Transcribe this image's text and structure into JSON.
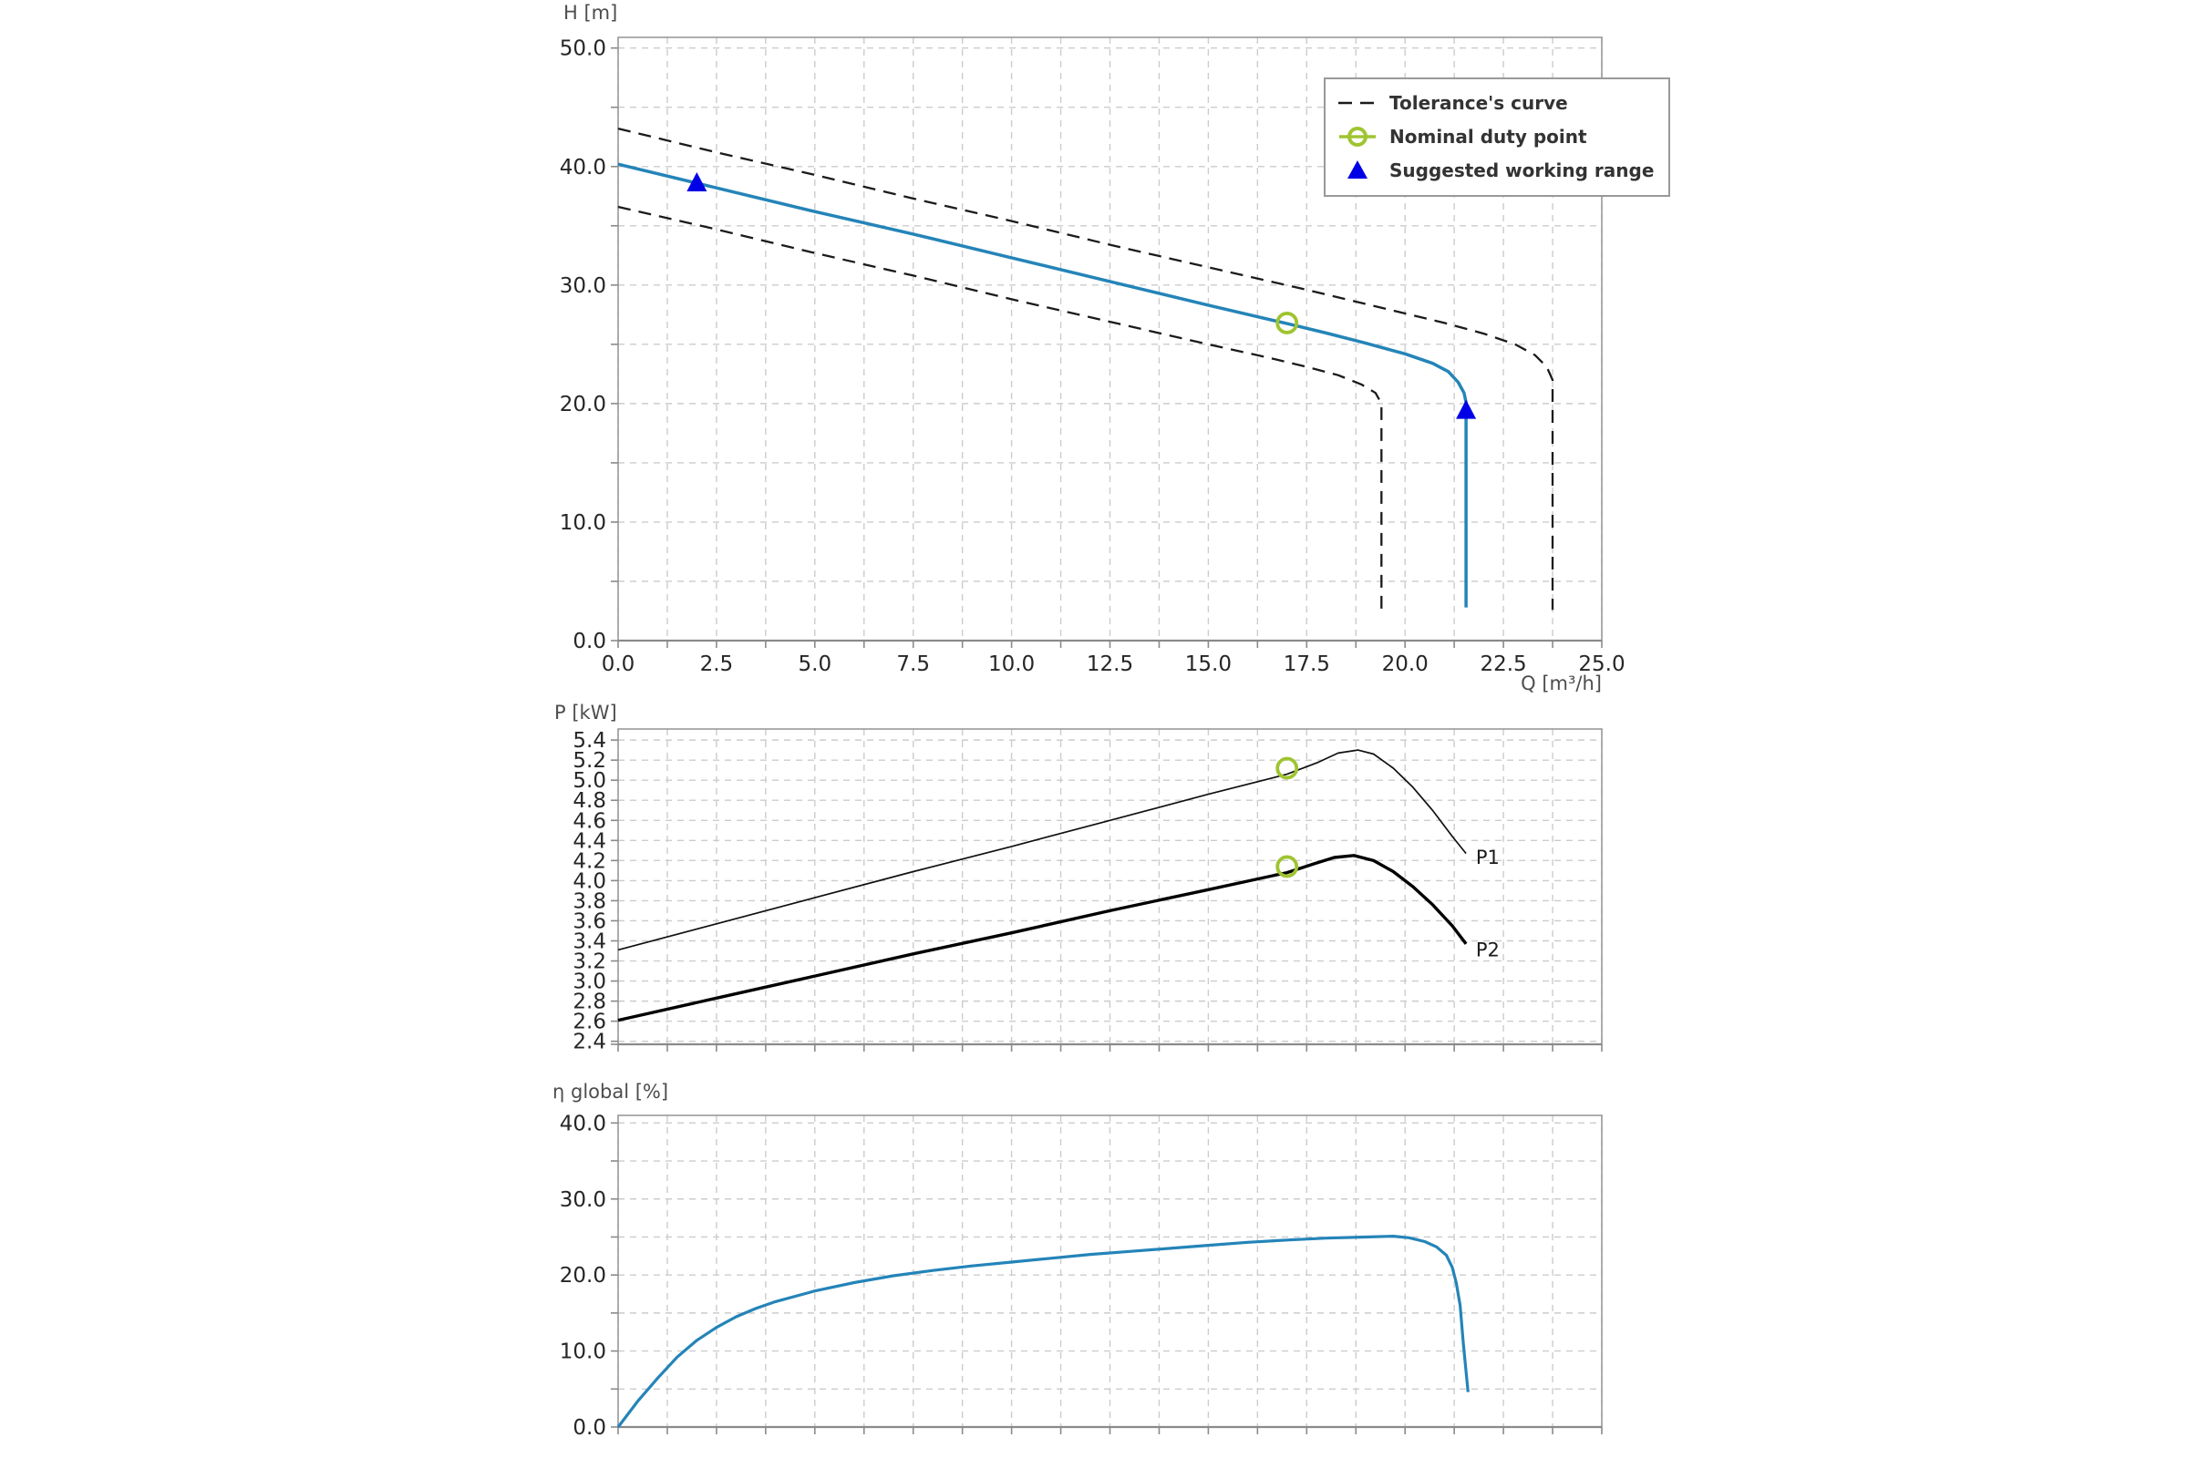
{
  "page": {
    "background": "#ffffff"
  },
  "colors": {
    "curve_blue": "#2484b8",
    "duty_point_green": "#9fc431",
    "working_range_blue": "#0000e6",
    "tolerance_dark": "#1b1b1b",
    "power_p1_black": "#101010",
    "power_p2_black": "#000000",
    "grid_gray": "#cccccc",
    "spine_gray": "#9a9a9a",
    "tick_text": "#262626",
    "title_text": "#4d4d4d",
    "legend_text": "#333333"
  },
  "chart_data": [
    {
      "type": "line",
      "title": "H [m]",
      "xlabel": "Q [m³/h]",
      "ylabel": "H [m]",
      "xlim": [
        0,
        25
      ],
      "ylim": [
        0,
        50.9
      ],
      "grid": {
        "on": true,
        "x_step": 1.25,
        "y_values": [
          5,
          10,
          15,
          20,
          25,
          30,
          35,
          40,
          45,
          50
        ]
      },
      "x_ticks": [
        0,
        2.5,
        5,
        7.5,
        10,
        12.5,
        15,
        17.5,
        20,
        22.5,
        25
      ],
      "x_tick_labels": [
        "0.0",
        "2.5",
        "5.0",
        "7.5",
        "10.0",
        "12.5",
        "15.0",
        "17.5",
        "20.0",
        "22.5",
        "25.0"
      ],
      "y_ticks": [
        0,
        10,
        20,
        30,
        40,
        50
      ],
      "y_tick_labels": [
        "0.0",
        "10.0",
        "20.0",
        "30.0",
        "40.0",
        "50.0"
      ],
      "legend": {
        "position": "upper right",
        "items": [
          {
            "label": "Tolerance's curve",
            "marker": "dashed-line",
            "color": "#1b1b1b"
          },
          {
            "label": "Nominal duty point",
            "marker": "open-circle",
            "color": "#9fc431"
          },
          {
            "label": "Suggested working range",
            "marker": "filled-triangle",
            "color": "#0000e6"
          }
        ]
      },
      "series": [
        {
          "name": "tolerance-upper",
          "color": "#1b1b1b",
          "width": 2.3,
          "dash": "14 9",
          "points": [
            [
              0,
              43.2
            ],
            [
              2.5,
              41.2
            ],
            [
              5,
              39.3
            ],
            [
              7.5,
              37.3
            ],
            [
              10,
              35.4
            ],
            [
              12.5,
              33.4
            ],
            [
              15,
              31.5
            ],
            [
              17.5,
              29.6
            ],
            [
              19.5,
              28.0
            ],
            [
              21,
              26.8
            ],
            [
              22,
              25.9
            ],
            [
              22.8,
              25.0
            ],
            [
              23.3,
              24.1
            ],
            [
              23.6,
              23.1
            ],
            [
              23.75,
              22.0
            ],
            [
              23.75,
              2.6
            ]
          ]
        },
        {
          "name": "tolerance-lower",
          "color": "#1b1b1b",
          "width": 2.3,
          "dash": "14 9",
          "points": [
            [
              0,
              36.6
            ],
            [
              2.5,
              34.7
            ],
            [
              5,
              32.7
            ],
            [
              7.5,
              30.8
            ],
            [
              10,
              28.8
            ],
            [
              12.5,
              26.9
            ],
            [
              15,
              25.0
            ],
            [
              16.5,
              23.9
            ],
            [
              17.5,
              23.1
            ],
            [
              18.3,
              22.4
            ],
            [
              18.9,
              21.6
            ],
            [
              19.25,
              20.9
            ],
            [
              19.4,
              20.0
            ],
            [
              19.4,
              2.6
            ]
          ]
        },
        {
          "name": "head-curve",
          "color": "#2484b8",
          "width": 3.5,
          "dash": null,
          "points": [
            [
              0,
              40.2
            ],
            [
              2.5,
              38.2
            ],
            [
              5,
              36.2
            ],
            [
              7.5,
              34.3
            ],
            [
              10,
              32.3
            ],
            [
              12.5,
              30.3
            ],
            [
              15,
              28.3
            ],
            [
              17,
              26.75
            ],
            [
              18,
              25.95
            ],
            [
              19,
              25.1
            ],
            [
              20,
              24.2
            ],
            [
              20.7,
              23.4
            ],
            [
              21.1,
              22.7
            ],
            [
              21.35,
              21.8
            ],
            [
              21.5,
              20.9
            ],
            [
              21.55,
              20.1
            ],
            [
              21.55,
              2.8
            ]
          ]
        }
      ],
      "markers": [
        {
          "type": "triangle",
          "name": "working-range-low",
          "x": 2,
          "y": 38.6,
          "color": "#0000e6"
        },
        {
          "type": "triangle",
          "name": "working-range-high",
          "x": 21.55,
          "y": 19.4,
          "color": "#0000e6"
        },
        {
          "type": "circle",
          "name": "nominal-duty-point",
          "x": 17,
          "y": 26.8,
          "color": "#9fc431"
        }
      ],
      "annotations": []
    },
    {
      "type": "line",
      "title": "P [kW]",
      "xlabel": "",
      "ylabel": "P [kW]",
      "xlim": [
        0,
        25
      ],
      "ylim": [
        2.37,
        5.51
      ],
      "grid": {
        "on": true,
        "x_step": 1.25,
        "y_values": [
          2.4,
          2.6,
          2.8,
          3.0,
          3.2,
          3.4,
          3.6,
          3.8,
          4.0,
          4.2,
          4.4,
          4.6,
          4.8,
          5.0,
          5.2,
          5.4
        ]
      },
      "x_ticks": [],
      "x_tick_labels": [],
      "y_ticks": [
        5.4,
        5.2,
        5.0,
        4.8,
        4.6,
        4.4,
        4.2,
        4.0,
        3.8,
        3.6,
        3.4,
        3.2,
        3.0,
        2.8,
        2.6,
        2.4
      ],
      "y_tick_labels": [
        "5.4",
        "5.2",
        "5.0",
        "4.8",
        "4.6",
        "4.4",
        "4.2",
        "4.0",
        "3.8",
        "3.6",
        "3.4",
        "3.2",
        "3.0",
        "2.8",
        "2.6",
        "2.4"
      ],
      "series": [
        {
          "name": "P1",
          "color": "#101010",
          "width": 1.7,
          "dash": null,
          "points": [
            [
              0,
              3.31
            ],
            [
              2.5,
              3.57
            ],
            [
              5,
              3.83
            ],
            [
              7.5,
              4.09
            ],
            [
              10,
              4.34
            ],
            [
              12.5,
              4.6
            ],
            [
              15,
              4.86
            ],
            [
              17,
              5.06
            ],
            [
              17.8,
              5.18
            ],
            [
              18.3,
              5.27
            ],
            [
              18.8,
              5.3
            ],
            [
              19.2,
              5.26
            ],
            [
              19.7,
              5.12
            ],
            [
              20.2,
              4.93
            ],
            [
              20.7,
              4.7
            ],
            [
              21.2,
              4.44
            ],
            [
              21.55,
              4.27
            ]
          ]
        },
        {
          "name": "P2",
          "color": "#000000",
          "width": 3.4,
          "dash": null,
          "points": [
            [
              0,
              2.61
            ],
            [
              2.5,
              2.83
            ],
            [
              5,
              3.05
            ],
            [
              7.5,
              3.27
            ],
            [
              10,
              3.48
            ],
            [
              12.5,
              3.7
            ],
            [
              15,
              3.91
            ],
            [
              17,
              4.08
            ],
            [
              17.7,
              4.17
            ],
            [
              18.2,
              4.23
            ],
            [
              18.7,
              4.25
            ],
            [
              19.2,
              4.2
            ],
            [
              19.7,
              4.09
            ],
            [
              20.2,
              3.94
            ],
            [
              20.7,
              3.76
            ],
            [
              21.2,
              3.55
            ],
            [
              21.55,
              3.37
            ]
          ]
        }
      ],
      "markers": [
        {
          "type": "circle",
          "name": "nominal-duty-point-p1",
          "x": 17,
          "y": 5.12,
          "color": "#9fc431"
        },
        {
          "type": "circle",
          "name": "nominal-duty-point-p2",
          "x": 17,
          "y": 4.14,
          "color": "#9fc431"
        }
      ],
      "annotations": [
        {
          "text": "P1",
          "x": 21.8,
          "y": 4.23
        },
        {
          "text": "P2",
          "x": 21.8,
          "y": 3.31
        }
      ]
    },
    {
      "type": "line",
      "title": "η global [%]",
      "xlabel": "",
      "ylabel": "η global [%]",
      "xlim": [
        0,
        25
      ],
      "ylim": [
        0,
        41
      ],
      "grid": {
        "on": true,
        "x_step": 1.25,
        "y_values": [
          5,
          10,
          15,
          20,
          25,
          30,
          35,
          40
        ]
      },
      "x_ticks": [],
      "x_tick_labels": [],
      "y_ticks": [
        0,
        10,
        20,
        30,
        40
      ],
      "y_tick_labels": [
        "0.0",
        "10.0",
        "20.0",
        "30.0",
        "40.0"
      ],
      "series": [
        {
          "name": "efficiency-curve",
          "color": "#2484b8",
          "width": 3.2,
          "dash": null,
          "points": [
            [
              0,
              0
            ],
            [
              0.5,
              3.4
            ],
            [
              1,
              6.4
            ],
            [
              1.5,
              9.2
            ],
            [
              2,
              11.4
            ],
            [
              2.5,
              13.1
            ],
            [
              3,
              14.5
            ],
            [
              3.5,
              15.6
            ],
            [
              4,
              16.5
            ],
            [
              5,
              17.9
            ],
            [
              6,
              19.0
            ],
            [
              7,
              19.9
            ],
            [
              8,
              20.6
            ],
            [
              9,
              21.2
            ],
            [
              10,
              21.7
            ],
            [
              11,
              22.2
            ],
            [
              12,
              22.7
            ],
            [
              13,
              23.1
            ],
            [
              14,
              23.5
            ],
            [
              15,
              23.9
            ],
            [
              16,
              24.3
            ],
            [
              17,
              24.6
            ],
            [
              18,
              24.85
            ],
            [
              19,
              25.0
            ],
            [
              19.7,
              25.1
            ],
            [
              20.1,
              24.9
            ],
            [
              20.5,
              24.4
            ],
            [
              20.8,
              23.7
            ],
            [
              21.05,
              22.6
            ],
            [
              21.2,
              21.0
            ],
            [
              21.3,
              19.0
            ],
            [
              21.4,
              16.0
            ],
            [
              21.48,
              11.0
            ],
            [
              21.6,
              4.6
            ]
          ]
        }
      ],
      "markers": [],
      "annotations": []
    }
  ]
}
